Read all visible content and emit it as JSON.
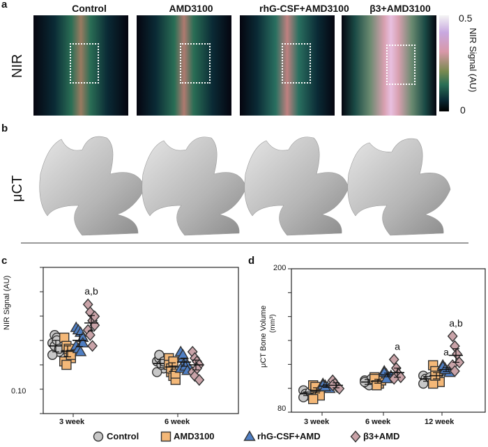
{
  "panels": {
    "a": {
      "letter": "a",
      "row_label": "NIR",
      "columns": [
        "Control",
        "AMD3100",
        "rhG-CSF+AMD3100",
        "β3+AMD3100"
      ],
      "colorbar": {
        "max_label": "0.5",
        "min_label": "0",
        "title": "NIR Signal (AU)"
      }
    },
    "b": {
      "letter": "b",
      "row_label": "μCT"
    },
    "c": {
      "letter": "c"
    },
    "d": {
      "letter": "d"
    }
  },
  "chart_data": [
    {
      "type": "scatter",
      "panel": "c",
      "ylabel": "NIR Signal (AU)",
      "yscale": "log",
      "ylim": [
        0.085,
        0.38
      ],
      "y_ticks_labeled": [
        "0.10"
      ],
      "categories": [
        "3 week",
        "6 week"
      ],
      "annotations": [
        {
          "category": "3 week",
          "series": "β3+AMD",
          "text": "a,b"
        }
      ],
      "series": [
        {
          "name": "Control",
          "marker": "circle",
          "color": "#c8c8c8",
          "values": [
            [
              0.175,
              0.19,
              0.185,
              0.16,
              0.155,
              0.17,
              0.18,
              0.165
            ],
            [
              0.145,
              0.15,
              0.14,
              0.135,
              0.13,
              0.155,
              0.14,
              0.145
            ]
          ],
          "mean": [
            0.17,
            0.142
          ],
          "err": [
            0.01,
            0.006
          ]
        },
        {
          "name": "AMD3100",
          "marker": "square",
          "color": "#f4b878",
          "values": [
            [
              0.185,
              0.17,
              0.16,
              0.15,
              0.145,
              0.14,
              0.165,
              0.155
            ],
            [
              0.15,
              0.13,
              0.125,
              0.12,
              0.14,
              0.135,
              0.145,
              0.128
            ]
          ],
          "mean": [
            0.161,
            0.137
          ],
          "err": [
            0.009,
            0.006
          ]
        },
        {
          "name": "rhG-CSF+AMD",
          "marker": "triangle",
          "color": "#4f7fc4",
          "values": [
            [
              0.205,
              0.2,
              0.195,
              0.185,
              0.17,
              0.165,
              0.16,
              0.175
            ],
            [
              0.16,
              0.15,
              0.145,
              0.14,
              0.135,
              0.155,
              0.138,
              0.132
            ]
          ],
          "mean": [
            0.18,
            0.144
          ],
          "err": [
            0.011,
            0.006
          ]
        },
        {
          "name": "β3+AMD",
          "marker": "diamond",
          "color": "#c9a3a8",
          "values": [
            [
              0.26,
              0.24,
              0.22,
              0.21,
              0.2,
              0.19,
              0.17,
              0.23
            ],
            [
              0.16,
              0.15,
              0.145,
              0.14,
              0.13,
              0.125,
              0.135,
              0.12
            ]
          ],
          "mean": [
            0.215,
            0.14
          ],
          "err": [
            0.017,
            0.007
          ]
        }
      ]
    },
    {
      "type": "scatter",
      "panel": "d",
      "ylabel": "μCT Bone Volume",
      "yunit": "(mm³)",
      "yscale": "log",
      "ylim": [
        80,
        200
      ],
      "y_ticks_labeled": [
        "80",
        "200"
      ],
      "categories": [
        "3 week",
        "6 week",
        "12 week"
      ],
      "annotations": [
        {
          "category": "6 week",
          "series": "β3+AMD",
          "text": "a"
        },
        {
          "category": "12 week",
          "series": "rhG-CSF+AMD",
          "text": "a"
        },
        {
          "category": "12 week",
          "series": "β3+AMD",
          "text": "a,b"
        }
      ],
      "series": [
        {
          "name": "Control",
          "marker": "circle",
          "color": "#c8c8c8",
          "values": [
            [
              92,
              90,
              89,
              91,
              88
            ],
            [
              98,
              96,
              95,
              99,
              97
            ],
            [
              101,
              99,
              98,
              100,
              96
            ]
          ],
          "mean": [
            90,
            97,
            99
          ],
          "err": [
            1,
            1.5,
            1.5
          ]
        },
        {
          "name": "AMD3100",
          "marker": "square",
          "color": "#f4b878",
          "values": [
            [
              95,
              93,
              91,
              89,
              87,
              94
            ],
            [
              100,
              97,
              96,
              98,
              99,
              95
            ],
            [
              108,
              104,
              100,
              97,
              96,
              101
            ]
          ],
          "mean": [
            92,
            97.5,
            101
          ],
          "err": [
            1.5,
            1.2,
            2
          ]
        },
        {
          "name": "rhG-CSF+AMD",
          "marker": "triangle",
          "color": "#4f7fc4",
          "values": [
            [
              96,
              95,
              94,
              93,
              95,
              94
            ],
            [
              104,
              102,
              100,
              101,
              103,
              99
            ],
            [
              108,
              106,
              104,
              103,
              107,
              105
            ]
          ],
          "mean": [
            94.5,
            101.5,
            105
          ],
          "err": [
            0.8,
            1.2,
            1.3
          ]
        },
        {
          "name": "β3+AMD",
          "marker": "diamond",
          "color": "#c9a3a8",
          "values": [
            [
              98,
              96,
              94,
              93,
              95
            ],
            [
              112,
              106,
              102,
              100,
              99
            ],
            [
              130,
              122,
              116,
              110,
              108,
              104
            ]
          ],
          "mean": [
            95,
            103,
            115
          ],
          "err": [
            1.5,
            3,
            5
          ]
        }
      ]
    }
  ],
  "legend": [
    "Control",
    "AMD3100",
    "rhG-CSF+AMD",
    "β3+AMD"
  ]
}
